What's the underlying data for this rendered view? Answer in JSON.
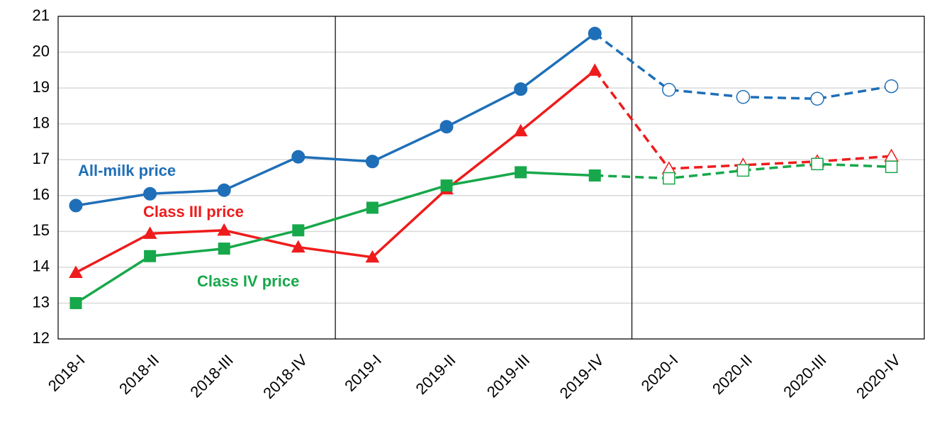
{
  "chart_data": {
    "type": "line",
    "categories": [
      "2018-I",
      "2018-II",
      "2018-III",
      "2018-IV",
      "2019-I",
      "2019-II",
      "2019-III",
      "2019-IV",
      "2020-I",
      "2020-II",
      "2020-III",
      "2020-IV"
    ],
    "series": [
      {
        "name": "All-milk price",
        "color": "#1f6fb8",
        "marker": "circle",
        "dashed_from": 7,
        "values": [
          15.72,
          16.05,
          16.15,
          17.08,
          16.95,
          17.92,
          18.97,
          20.52,
          18.95,
          18.75,
          18.7,
          19.05
        ]
      },
      {
        "name": "Class III price",
        "color": "#ee1c1c",
        "marker": "triangle",
        "dashed_from": 7,
        "values": [
          13.85,
          14.94,
          15.03,
          14.56,
          14.28,
          16.18,
          17.8,
          19.49,
          16.75,
          16.85,
          16.95,
          17.1
        ]
      },
      {
        "name": "Class IV price",
        "color": "#17a84b",
        "marker": "square",
        "dashed_from": 7,
        "values": [
          13.0,
          14.31,
          14.52,
          15.03,
          15.66,
          16.28,
          16.65,
          16.56,
          16.48,
          16.7,
          16.88,
          16.8
        ]
      }
    ],
    "ylim": [
      12,
      21
    ],
    "yticks": [
      12,
      13,
      14,
      15,
      16,
      17,
      18,
      19,
      20,
      21
    ],
    "grid": true
  }
}
